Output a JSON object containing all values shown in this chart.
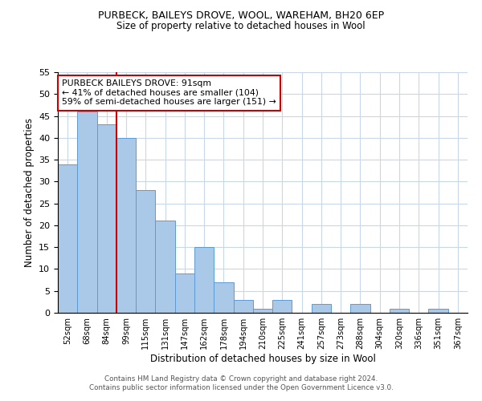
{
  "title1": "PURBECK, BAILEYS DROVE, WOOL, WAREHAM, BH20 6EP",
  "title2": "Size of property relative to detached houses in Wool",
  "xlabel": "Distribution of detached houses by size in Wool",
  "ylabel": "Number of detached properties",
  "bin_labels": [
    "52sqm",
    "68sqm",
    "84sqm",
    "99sqm",
    "115sqm",
    "131sqm",
    "147sqm",
    "162sqm",
    "178sqm",
    "194sqm",
    "210sqm",
    "225sqm",
    "241sqm",
    "257sqm",
    "273sqm",
    "288sqm",
    "304sqm",
    "320sqm",
    "336sqm",
    "351sqm",
    "367sqm"
  ],
  "bar_heights": [
    34,
    46,
    43,
    40,
    28,
    21,
    9,
    15,
    7,
    3,
    1,
    3,
    0,
    2,
    0,
    2,
    0,
    1,
    0,
    1,
    0
  ],
  "bar_color": "#aac9e8",
  "bar_edge_color": "#5b9bd5",
  "vline_x": 2.5,
  "vline_color": "#cc0000",
  "ylim": [
    0,
    55
  ],
  "yticks": [
    0,
    5,
    10,
    15,
    20,
    25,
    30,
    35,
    40,
    45,
    50,
    55
  ],
  "annotation_text": "PURBECK BAILEYS DROVE: 91sqm\n← 41% of detached houses are smaller (104)\n59% of semi-detached houses are larger (151) →",
  "annotation_box_color": "#ffffff",
  "annotation_box_edge": "#cc0000",
  "footer1": "Contains HM Land Registry data © Crown copyright and database right 2024.",
  "footer2": "Contains public sector information licensed under the Open Government Licence v3.0."
}
